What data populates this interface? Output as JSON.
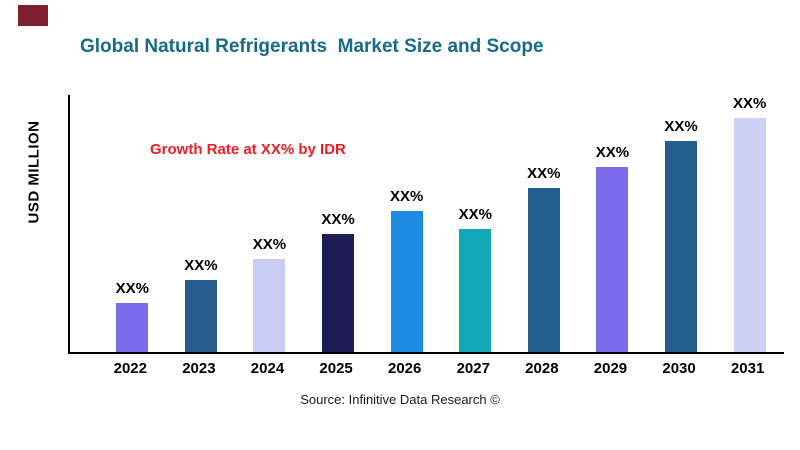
{
  "title": "Global Natural Refrigerants  Market Size and Scope",
  "growth_note": "Growth Rate at XX% by IDR",
  "y_axis_label": "USD MILLION",
  "source": "Source: Infinitive Data Research ©",
  "colors": {
    "title_color": "#176b87",
    "note_color": "#ee1d23",
    "corner_mark_color": "#7d1f2d",
    "axis_color": "#000000"
  },
  "chart_data": {
    "type": "bar",
    "title": "Global Natural Refrigerants  Market Size and Scope",
    "xlabel": "",
    "ylabel": "USD MILLION",
    "categories": [
      "2022",
      "2023",
      "2024",
      "2025",
      "2026",
      "2027",
      "2028",
      "2029",
      "2030",
      "2031"
    ],
    "values": [
      19,
      28,
      36,
      46,
      55,
      48,
      64,
      72,
      82,
      91
    ],
    "bar_labels": [
      "XX%",
      "XX%",
      "XX%",
      "XX%",
      "XX%",
      "XX%",
      "XX%",
      "XX%",
      "XX%",
      "XX%"
    ],
    "bar_colors": [
      "#7c6cec",
      "#275d8d",
      "#c9cdf3",
      "#1e1c55",
      "#1d8be0",
      "#12a7b6",
      "#235e8e",
      "#7c6cec",
      "#235e8e",
      "#cdd1f5"
    ],
    "ylim": [
      0,
      100
    ],
    "grid": false,
    "legend": false,
    "annotation": "Growth Rate at XX% by IDR"
  }
}
